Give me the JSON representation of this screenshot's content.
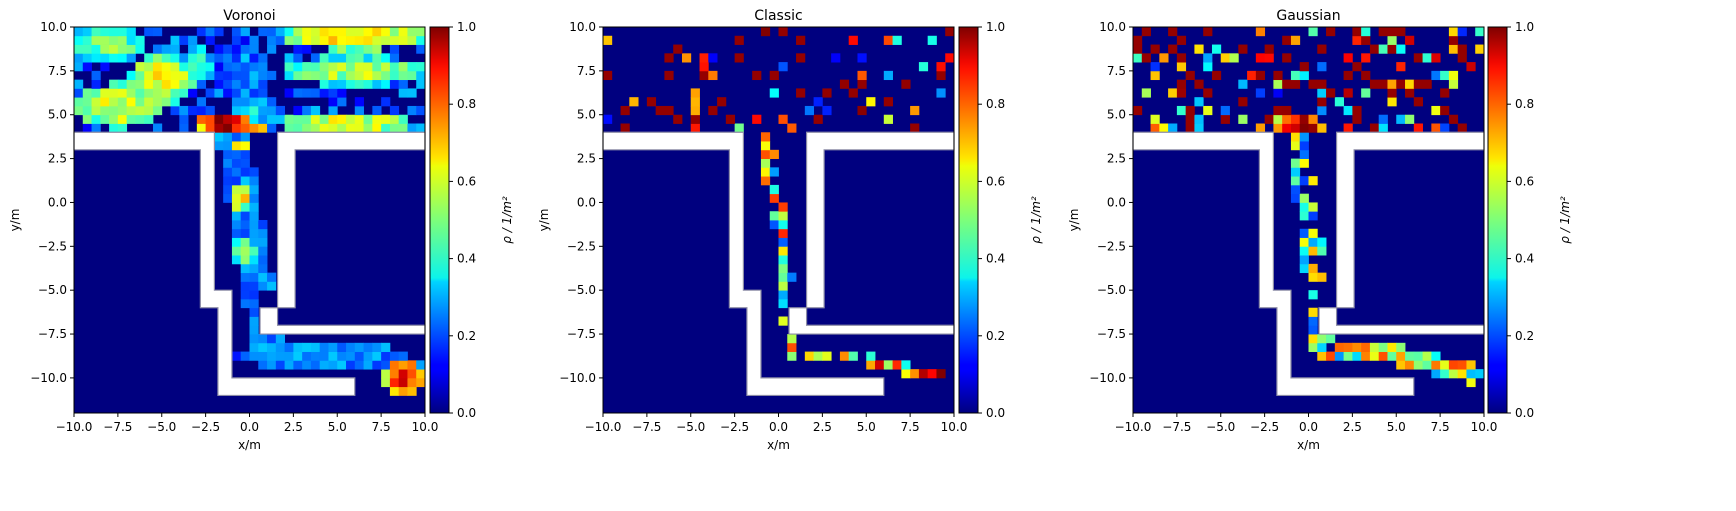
{
  "figure": {
    "colorbar_ticks": [
      "0.0",
      "0.2",
      "0.4",
      "0.6",
      "0.8",
      "1.0"
    ],
    "colorbar_label": "ρ / 1/m²"
  },
  "chart_data": [
    {
      "type": "heatmap",
      "title": "Voronoi",
      "xlabel": "x/m",
      "ylabel": "y/m",
      "xlim": [
        -10.0,
        10.0
      ],
      "ylim": [
        -12.0,
        10.0
      ],
      "xticks": [
        "−10.0",
        "−7.5",
        "−5.0",
        "−2.5",
        "0.0",
        "2.5",
        "5.0",
        "7.5",
        "10.0"
      ],
      "yticks": [
        "−10.0",
        "−7.5",
        "−5.0",
        "−2.5",
        "0.0",
        "2.5",
        "5.0",
        "7.5",
        "10.0"
      ],
      "colormap": "jet",
      "colorbar_range": [
        0.0,
        1.0
      ],
      "colorbar_label": "ρ / 1/m²",
      "grid": false,
      "cell_size_m": 0.5,
      "seed": 11,
      "blobs": [
        {
          "x": -7.5,
          "y": 5.5,
          "rx": 2.5,
          "ry": 1.3,
          "value": 0.6
        },
        {
          "x": -5.0,
          "y": 7.0,
          "rx": 2.0,
          "ry": 1.5,
          "value": 0.62
        },
        {
          "x": -8.0,
          "y": 9.0,
          "rx": 2.0,
          "ry": 1.0,
          "value": 0.5
        },
        {
          "x": -3.0,
          "y": 8.0,
          "rx": 1.0,
          "ry": 1.0,
          "value": 0.4
        },
        {
          "x": 0.5,
          "y": 5.0,
          "rx": 1.5,
          "ry": 1.0,
          "value": 0.35
        },
        {
          "x": -0.5,
          "y": 7.5,
          "rx": 1.5,
          "ry": 2.0,
          "value": 0.25
        },
        {
          "x": 6.0,
          "y": 9.5,
          "rx": 4.0,
          "ry": 0.8,
          "value": 0.68
        },
        {
          "x": 6.0,
          "y": 7.5,
          "rx": 4.0,
          "ry": 0.9,
          "value": 0.55
        },
        {
          "x": 5.5,
          "y": 4.5,
          "rx": 4.0,
          "ry": 0.6,
          "value": 0.62
        },
        {
          "x": -1.5,
          "y": 4.5,
          "rx": 1.5,
          "ry": 0.6,
          "value": 1.0
        },
        {
          "x": 0.6,
          "y": 4.3,
          "rx": 0.6,
          "ry": 0.4,
          "value": 0.75
        },
        {
          "x": -0.5,
          "y": 3.3,
          "rx": 0.5,
          "ry": 0.5,
          "value": 0.72
        },
        {
          "x": -0.5,
          "y": 0.3,
          "rx": 0.6,
          "ry": 0.8,
          "value": 0.65
        },
        {
          "x": -0.3,
          "y": -2.8,
          "rx": 0.7,
          "ry": 0.8,
          "value": 0.55
        },
        {
          "x": 3.0,
          "y": -8.7,
          "rx": 4.0,
          "ry": 0.6,
          "value": 0.3
        },
        {
          "x": 8.8,
          "y": -10.0,
          "rx": 1.2,
          "ry": 1.2,
          "value": 0.88
        }
      ],
      "corridor": {
        "x": [
          -0.9,
          -0.3,
          0.2,
          0.7,
          1.0
        ],
        "y": [
          3.5,
          0.0,
          -3.0,
          -6.0,
          -8.5
        ],
        "halfwidth": 0.9,
        "value": 0.25
      },
      "corridor2": {
        "x": [
          1.0,
          4.0,
          7.5,
          9.5
        ],
        "y": [
          -8.7,
          -8.7,
          -8.7,
          -9.5
        ],
        "halfwidth": 0.6,
        "value": 0.25
      }
    },
    {
      "type": "heatmap",
      "title": "Classic",
      "xlabel": "x/m",
      "ylabel": "y/m",
      "xlim": [
        -10.0,
        10.0
      ],
      "ylim": [
        -12.0,
        10.0
      ],
      "xticks": [
        "−10.0",
        "−7.5",
        "−5.0",
        "−2.5",
        "0.0",
        "2.5",
        "5.0",
        "7.5",
        "10.0"
      ],
      "yticks": [
        "−10.0",
        "−7.5",
        "−5.0",
        "−2.5",
        "0.0",
        "2.5",
        "5.0",
        "7.5",
        "10.0"
      ],
      "colormap": "jet",
      "colorbar_range": [
        0.0,
        1.0
      ],
      "colorbar_label": "ρ / 1/m²",
      "grid": false,
      "cell_size_m": 0.5,
      "seed": 23,
      "sparse": true,
      "scatter_probability": 0.12,
      "corridor": {
        "x": [
          -0.7,
          0.0,
          0.5,
          0.8
        ],
        "y": [
          3.5,
          -1.0,
          -5.0,
          -8.5
        ],
        "halfwidth": 0.4,
        "value": 0.4
      },
      "corridor2": {
        "x": [
          1.0,
          5.0,
          9.5
        ],
        "y": [
          -8.9,
          -8.9,
          -10.0
        ],
        "halfwidth": 0.3,
        "value": 0.6
      }
    },
    {
      "type": "heatmap",
      "title": "Gaussian",
      "xlabel": "x/m",
      "ylabel": "y/m",
      "xlim": [
        -10.0,
        10.0
      ],
      "ylim": [
        -12.0,
        10.0
      ],
      "xticks": [
        "−10.0",
        "−7.5",
        "−5.0",
        "−2.5",
        "0.0",
        "2.5",
        "5.0",
        "7.5",
        "10.0"
      ],
      "yticks": [
        "−10.0",
        "−7.5",
        "−5.0",
        "−2.5",
        "0.0",
        "2.5",
        "5.0",
        "7.5",
        "10.0"
      ],
      "colormap": "jet",
      "colorbar_range": [
        0.0,
        1.0
      ],
      "colorbar_label": "ρ / 1/m²",
      "grid": false,
      "cell_size_m": 0.5,
      "seed": 37,
      "sparse": true,
      "scatter_probability": 0.3,
      "blobs": [
        {
          "x": -0.5,
          "y": 4.4,
          "rx": 1.6,
          "ry": 0.5,
          "value": 0.95
        }
      ],
      "corridor": {
        "x": [
          -0.6,
          0.0,
          0.5,
          0.8
        ],
        "y": [
          3.5,
          -1.0,
          -5.0,
          -8.5
        ],
        "halfwidth": 0.6,
        "value": 0.35
      },
      "corridor2": {
        "x": [
          1.0,
          5.0,
          9.5
        ],
        "y": [
          -8.7,
          -8.7,
          -9.8
        ],
        "halfwidth": 0.5,
        "value": 0.45
      }
    }
  ],
  "geometry_obstacles_m": [
    {
      "x": -10.0,
      "y": 3.0,
      "w": 8.3,
      "h": 1.0
    },
    {
      "x": -2.7,
      "y": -6.0,
      "w": 1.0,
      "h": 9.0
    },
    {
      "x": -1.7,
      "y": -11.0,
      "w": 1.0,
      "h": 6.0
    },
    {
      "x": -1.7,
      "y": -11.0,
      "w": 7.7,
      "h": 1.0
    },
    {
      "x": 1.6,
      "y": -6.0,
      "w": 1.0,
      "h": 10.0
    },
    {
      "x": 1.6,
      "y": 3.0,
      "w": 8.4,
      "h": 1.0
    },
    {
      "x": 0.6,
      "y": -6.0,
      "w": 1.0,
      "h": -1.0
    },
    {
      "x": 0.6,
      "y": -7.5,
      "w": 9.4,
      "h": 0.5
    }
  ]
}
